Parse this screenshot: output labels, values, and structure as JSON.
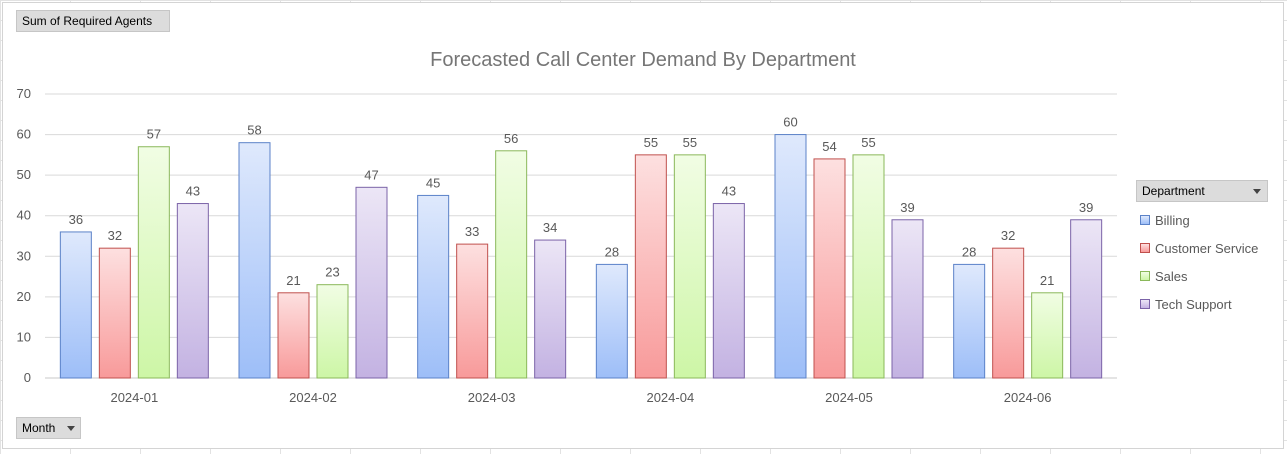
{
  "pivot": {
    "values_field": "Sum of Required Agents",
    "axis_field": "Month",
    "legend_field": "Department"
  },
  "chart_data": {
    "type": "bar",
    "title": "Forecasted Call Center Demand By Department",
    "xlabel": "",
    "ylabel": "",
    "ylim": [
      0,
      70
    ],
    "yticks": [
      0,
      10,
      20,
      30,
      40,
      50,
      60,
      70
    ],
    "grid": true,
    "legend_position": "right",
    "categories": [
      "2024-01",
      "2024-02",
      "2024-03",
      "2024-04",
      "2024-05",
      "2024-06"
    ],
    "series": [
      {
        "name": "Billing",
        "values": [
          36,
          58,
          45,
          28,
          60,
          28
        ],
        "color_top": "#dfe9fc",
        "color_bottom": "#9dbef8",
        "stroke": "#5b82c8"
      },
      {
        "name": "Customer Service",
        "values": [
          32,
          21,
          33,
          55,
          54,
          32
        ],
        "color_top": "#fde0e0",
        "color_bottom": "#f89a9a",
        "stroke": "#c0504d"
      },
      {
        "name": "Sales",
        "values": [
          57,
          23,
          56,
          55,
          55,
          21
        ],
        "color_top": "#f1fde4",
        "color_bottom": "#cdf6a6",
        "stroke": "#8ab85a"
      },
      {
        "name": "Tech Support",
        "values": [
          43,
          47,
          34,
          43,
          39,
          39
        ],
        "color_top": "#ece6f6",
        "color_bottom": "#c3b2e2",
        "stroke": "#7b63a8"
      }
    ]
  }
}
